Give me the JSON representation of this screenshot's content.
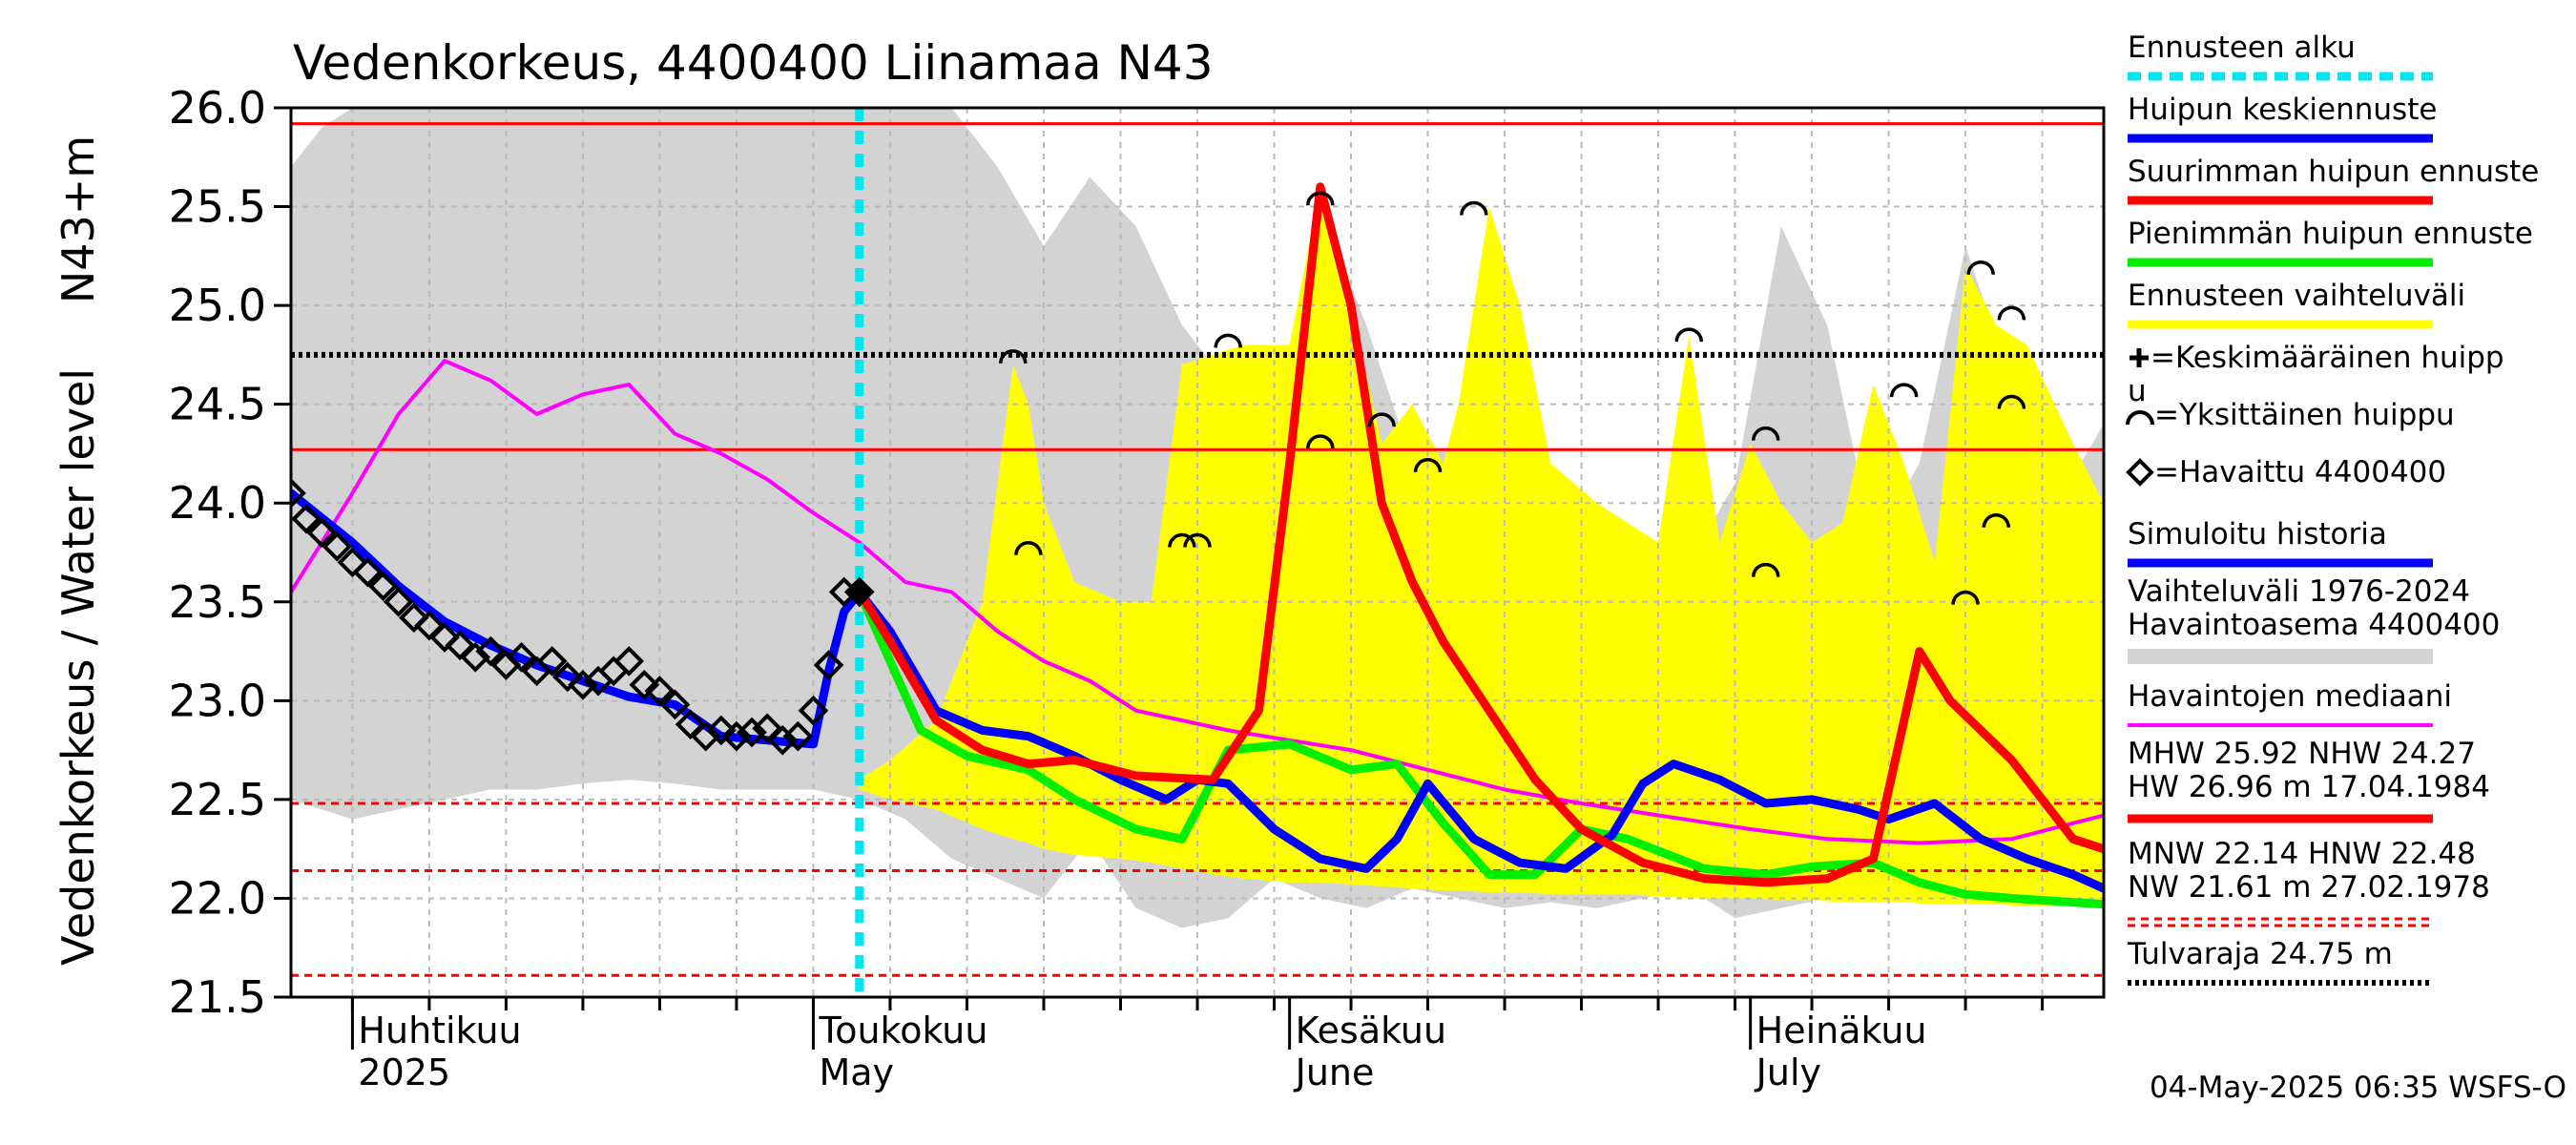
{
  "chart_data": {
    "type": "line",
    "title": "Vedenkorkeus, 4400400 Liinamaa N43",
    "ylabel_line1": "Vedenkorkeus / Water level",
    "ylabel_line2": "N43+m",
    "ylim": [
      21.5,
      26.0
    ],
    "yticks": [
      "21.5",
      "22.0",
      "22.5",
      "23.0",
      "23.5",
      "24.0",
      "24.5",
      "25.0",
      "25.5",
      "26.0"
    ],
    "xlim": [
      "2025-03-28",
      "2025-07-24"
    ],
    "months": [
      {
        "fi": "Huhtikuu",
        "en": "2025",
        "date": "2025-04-01"
      },
      {
        "fi": "Toukokuu",
        "en": "May",
        "date": "2025-05-01"
      },
      {
        "fi": "Kesäkuu",
        "en": "June",
        "date": "2025-06-01"
      },
      {
        "fi": "Heinäkuu",
        "en": "July",
        "date": "2025-07-01"
      }
    ],
    "forecast_start": "2025-05-04",
    "reference_lines": {
      "red_solid": [
        25.92,
        24.27
      ],
      "red_dashed": [
        22.48,
        22.14,
        21.61
      ],
      "flood_limit": 24.75
    },
    "colors": {
      "history_band": "#d3d3d3",
      "forecast_band": "#ffff00",
      "median": "#ff00ff",
      "mean_peak": "#0000ff",
      "max_peak": "#ff0000",
      "min_peak": "#00ee00",
      "forecast_start": "#00e5ee",
      "simulated": "#0000ff",
      "threshold": "#ff0000"
    },
    "series": [
      {
        "name": "Havaintojen mediaani",
        "x": [
          "2025-03-28",
          "2025-04-01",
          "2025-04-04",
          "2025-04-07",
          "2025-04-10",
          "2025-04-13",
          "2025-04-16",
          "2025-04-19",
          "2025-04-22",
          "2025-04-25",
          "2025-04-28",
          "2025-05-01",
          "2025-05-04",
          "2025-05-07",
          "2025-05-10",
          "2025-05-13",
          "2025-05-16",
          "2025-05-19",
          "2025-05-22",
          "2025-05-25",
          "2025-05-28",
          "2025-06-01",
          "2025-06-05",
          "2025-06-10",
          "2025-06-15",
          "2025-06-20",
          "2025-06-25",
          "2025-07-01",
          "2025-07-06",
          "2025-07-12",
          "2025-07-18",
          "2025-07-24"
        ],
        "values": [
          23.55,
          24.05,
          24.45,
          24.72,
          24.62,
          24.45,
          24.55,
          24.6,
          24.35,
          24.25,
          24.12,
          23.95,
          23.8,
          23.6,
          23.55,
          23.35,
          23.2,
          23.1,
          22.95,
          22.9,
          22.85,
          22.8,
          22.75,
          22.65,
          22.55,
          22.48,
          22.42,
          22.35,
          22.3,
          22.28,
          22.3,
          22.42
        ]
      },
      {
        "name": "Simuloitu historia",
        "x": [
          "2025-03-28",
          "2025-04-01",
          "2025-04-04",
          "2025-04-07",
          "2025-04-10",
          "2025-04-13",
          "2025-04-16",
          "2025-04-19",
          "2025-04-22",
          "2025-04-25",
          "2025-04-28",
          "2025-05-01",
          "2025-05-02",
          "2025-05-03",
          "2025-05-04"
        ],
        "values": [
          24.05,
          23.8,
          23.58,
          23.4,
          23.28,
          23.18,
          23.1,
          23.02,
          22.98,
          22.82,
          22.8,
          22.78,
          23.15,
          23.45,
          23.55
        ]
      },
      {
        "name": "Havaittu 4400400",
        "x": [
          "2025-03-28",
          "2025-03-29",
          "2025-03-30",
          "2025-03-31",
          "2025-04-01",
          "2025-04-02",
          "2025-04-03",
          "2025-04-04",
          "2025-04-05",
          "2025-04-06",
          "2025-04-07",
          "2025-04-08",
          "2025-04-09",
          "2025-04-10",
          "2025-04-11",
          "2025-04-12",
          "2025-04-13",
          "2025-04-14",
          "2025-04-15",
          "2025-04-16",
          "2025-04-17",
          "2025-04-18",
          "2025-04-19",
          "2025-04-20",
          "2025-04-21",
          "2025-04-22",
          "2025-04-23",
          "2025-04-24",
          "2025-04-25",
          "2025-04-26",
          "2025-04-27",
          "2025-04-28",
          "2025-04-29",
          "2025-04-30",
          "2025-05-01",
          "2025-05-02",
          "2025-05-03",
          "2025-05-04"
        ],
        "values": [
          24.05,
          23.92,
          23.85,
          23.78,
          23.7,
          23.65,
          23.58,
          23.5,
          23.42,
          23.38,
          23.32,
          23.28,
          23.22,
          23.25,
          23.18,
          23.22,
          23.15,
          23.2,
          23.12,
          23.08,
          23.1,
          23.15,
          23.2,
          23.08,
          23.05,
          22.98,
          22.88,
          22.82,
          22.85,
          22.82,
          22.84,
          22.86,
          22.8,
          22.82,
          22.95,
          23.18,
          23.55,
          23.55
        ]
      },
      {
        "name": "Huipun keskiennuste",
        "x": [
          "2025-05-04",
          "2025-05-06",
          "2025-05-09",
          "2025-05-12",
          "2025-05-15",
          "2025-05-18",
          "2025-05-21",
          "2025-05-24",
          "2025-05-26",
          "2025-05-28",
          "2025-05-31",
          "2025-06-03",
          "2025-06-06",
          "2025-06-08",
          "2025-06-10",
          "2025-06-13",
          "2025-06-16",
          "2025-06-19",
          "2025-06-22",
          "2025-06-24",
          "2025-06-26",
          "2025-06-29",
          "2025-07-02",
          "2025-07-05",
          "2025-07-08",
          "2025-07-10",
          "2025-07-13",
          "2025-07-16",
          "2025-07-19",
          "2025-07-22",
          "2025-07-24"
        ],
        "values": [
          23.55,
          23.35,
          22.95,
          22.85,
          22.82,
          22.72,
          22.6,
          22.5,
          22.6,
          22.58,
          22.35,
          22.2,
          22.15,
          22.3,
          22.58,
          22.3,
          22.18,
          22.15,
          22.32,
          22.58,
          22.68,
          22.6,
          22.48,
          22.5,
          22.45,
          22.4,
          22.48,
          22.3,
          22.2,
          22.12,
          22.05
        ]
      },
      {
        "name": "Suurimman huipun ennuste",
        "x": [
          "2025-05-04",
          "2025-05-06",
          "2025-05-09",
          "2025-05-12",
          "2025-05-15",
          "2025-05-18",
          "2025-05-22",
          "2025-05-27",
          "2025-05-30",
          "2025-06-01",
          "2025-06-03",
          "2025-06-05",
          "2025-06-07",
          "2025-06-09",
          "2025-06-11",
          "2025-06-14",
          "2025-06-17",
          "2025-06-20",
          "2025-06-24",
          "2025-06-28",
          "2025-07-02",
          "2025-07-06",
          "2025-07-09",
          "2025-07-12",
          "2025-07-14",
          "2025-07-16",
          "2025-07-18",
          "2025-07-20",
          "2025-07-22",
          "2025-07-24"
        ],
        "values": [
          23.55,
          23.3,
          22.9,
          22.75,
          22.68,
          22.7,
          22.62,
          22.6,
          22.95,
          24.2,
          25.6,
          25.0,
          24.0,
          23.6,
          23.3,
          22.95,
          22.6,
          22.35,
          22.18,
          22.1,
          22.08,
          22.1,
          22.2,
          23.25,
          23.0,
          22.85,
          22.7,
          22.5,
          22.3,
          22.25
        ]
      },
      {
        "name": "Pienimmän huipun ennuste",
        "x": [
          "2025-05-04",
          "2025-05-06",
          "2025-05-08",
          "2025-05-11",
          "2025-05-15",
          "2025-05-18",
          "2025-05-22",
          "2025-05-25",
          "2025-05-28",
          "2025-06-01",
          "2025-06-05",
          "2025-06-08",
          "2025-06-11",
          "2025-06-14",
          "2025-06-17",
          "2025-06-20",
          "2025-06-23",
          "2025-06-28",
          "2025-07-02",
          "2025-07-05",
          "2025-07-09",
          "2025-07-12",
          "2025-07-15",
          "2025-07-18",
          "2025-07-22",
          "2025-07-24"
        ],
        "values": [
          23.55,
          23.2,
          22.85,
          22.72,
          22.65,
          22.5,
          22.35,
          22.3,
          22.75,
          22.78,
          22.65,
          22.68,
          22.38,
          22.12,
          22.12,
          22.35,
          22.3,
          22.15,
          22.12,
          22.16,
          22.18,
          22.08,
          22.02,
          22.0,
          21.98,
          21.97
        ]
      }
    ],
    "bands": [
      {
        "name": "Ennusteen vaihteluväli",
        "x": [
          "2025-05-04",
          "2025-05-06",
          "2025-05-09",
          "2025-05-12",
          "2025-05-14",
          "2025-05-15",
          "2025-05-16",
          "2025-05-18",
          "2025-05-21",
          "2025-05-23",
          "2025-05-25",
          "2025-05-27",
          "2025-05-29",
          "2025-06-01",
          "2025-06-03",
          "2025-06-05",
          "2025-06-07",
          "2025-06-09",
          "2025-06-11",
          "2025-06-12",
          "2025-06-14",
          "2025-06-16",
          "2025-06-18",
          "2025-06-21",
          "2025-06-23",
          "2025-06-25",
          "2025-06-27",
          "2025-06-29",
          "2025-07-01",
          "2025-07-03",
          "2025-07-05",
          "2025-07-07",
          "2025-07-09",
          "2025-07-11",
          "2025-07-13",
          "2025-07-15",
          "2025-07-17",
          "2025-07-19",
          "2025-07-22",
          "2025-07-24"
        ],
        "upper": [
          22.6,
          22.7,
          22.9,
          23.5,
          24.7,
          24.5,
          24.0,
          23.6,
          23.5,
          23.5,
          24.7,
          24.75,
          24.8,
          24.8,
          25.6,
          25.0,
          24.3,
          24.5,
          24.2,
          24.5,
          25.5,
          25.0,
          24.2,
          24.0,
          23.9,
          23.8,
          24.85,
          23.8,
          24.3,
          24.0,
          23.8,
          23.9,
          24.6,
          24.2,
          23.7,
          25.2,
          24.9,
          24.8,
          24.3,
          24.0
        ],
        "lower": [
          22.55,
          22.5,
          22.45,
          22.35,
          22.3,
          22.28,
          22.25,
          22.22,
          22.2,
          22.18,
          22.15,
          22.12,
          22.1,
          22.08,
          22.08,
          22.07,
          22.06,
          22.05,
          22.04,
          22.04,
          22.03,
          22.03,
          22.02,
          22.02,
          22.02,
          22.01,
          22.0,
          22.0,
          22.0,
          21.99,
          21.99,
          21.98,
          21.98,
          21.98,
          21.97,
          21.97,
          21.97,
          21.96,
          21.96,
          21.96
        ]
      },
      {
        "name": "Vaihteluväli 1976-2024 Havaintoasema 4400400",
        "x": [
          "2025-03-28",
          "2025-03-30",
          "2025-04-01",
          "2025-04-04",
          "2025-04-07",
          "2025-04-10",
          "2025-04-13",
          "2025-04-16",
          "2025-04-19",
          "2025-04-22",
          "2025-04-25",
          "2025-04-28",
          "2025-05-01",
          "2025-05-04",
          "2025-05-07",
          "2025-05-10",
          "2025-05-13",
          "2025-05-16",
          "2025-05-19",
          "2025-05-22",
          "2025-05-25",
          "2025-05-28",
          "2025-05-31",
          "2025-06-03",
          "2025-06-06",
          "2025-06-09",
          "2025-06-12",
          "2025-06-15",
          "2025-06-18",
          "2025-06-21",
          "2025-06-24",
          "2025-06-27",
          "2025-06-30",
          "2025-07-03",
          "2025-07-06",
          "2025-07-09",
          "2025-07-12",
          "2025-07-15",
          "2025-07-18",
          "2025-07-21",
          "2025-07-24"
        ],
        "upper": [
          25.7,
          25.9,
          26.0,
          26.0,
          26.0,
          26.0,
          26.0,
          26.0,
          26.0,
          26.0,
          26.0,
          26.0,
          26.0,
          26.0,
          26.0,
          26.0,
          25.7,
          25.3,
          25.65,
          25.4,
          24.9,
          24.6,
          24.2,
          25.5,
          24.9,
          24.2,
          24.3,
          24.4,
          24.0,
          23.9,
          23.8,
          23.7,
          24.1,
          25.4,
          24.9,
          23.8,
          24.2,
          25.3,
          24.6,
          24.0,
          24.4
        ],
        "lower": [
          22.5,
          22.45,
          22.4,
          22.45,
          22.5,
          22.55,
          22.55,
          22.58,
          22.6,
          22.58,
          22.55,
          22.55,
          22.55,
          22.5,
          22.4,
          22.2,
          22.1,
          22.0,
          22.3,
          21.95,
          21.85,
          21.9,
          22.1,
          22.0,
          21.95,
          22.05,
          22.0,
          21.95,
          21.98,
          21.95,
          22.0,
          22.05,
          21.9,
          21.95,
          22.0,
          22.0,
          22.05,
          22.0,
          22.05,
          22.05,
          22.1
        ]
      }
    ],
    "peak_markers": [
      {
        "x": "2025-05-14",
        "y": 24.75
      },
      {
        "x": "2025-05-15",
        "y": 23.78
      },
      {
        "x": "2025-05-25",
        "y": 23.82
      },
      {
        "x": "2025-05-26",
        "y": 23.82
      },
      {
        "x": "2025-05-28",
        "y": 24.83
      },
      {
        "x": "2025-06-03",
        "y": 25.55
      },
      {
        "x": "2025-06-03",
        "y": 24.32
      },
      {
        "x": "2025-06-07",
        "y": 24.43
      },
      {
        "x": "2025-06-10",
        "y": 24.2
      },
      {
        "x": "2025-06-13",
        "y": 25.5
      },
      {
        "x": "2025-06-27",
        "y": 24.86
      },
      {
        "x": "2025-07-02",
        "y": 24.36
      },
      {
        "x": "2025-07-02",
        "y": 23.67
      },
      {
        "x": "2025-07-11",
        "y": 24.58
      },
      {
        "x": "2025-07-15",
        "y": 23.53
      },
      {
        "x": "2025-07-16",
        "y": 25.2
      },
      {
        "x": "2025-07-17",
        "y": 23.92
      },
      {
        "x": "2025-07-18",
        "y": 24.97
      },
      {
        "x": "2025-07-18",
        "y": 24.52
      }
    ],
    "legend_placement": "right"
  },
  "legend": {
    "items": [
      {
        "label": "Ennusteen alku",
        "kind": "dashed",
        "color": "#00e5ee"
      },
      {
        "label": "Huipun keskiennuste",
        "kind": "line",
        "color": "#0000ff"
      },
      {
        "label": "Suurimman huipun ennuste",
        "kind": "line",
        "color": "#ff0000"
      },
      {
        "label": "Pienimmän huipun ennuste",
        "kind": "line",
        "color": "#00ee00"
      },
      {
        "label": "Ennusteen vaihteluväli",
        "kind": "line",
        "color": "#ffff00"
      },
      {
        "label": "=Keskimääräinen huipp",
        "label2": "u",
        "kind": "cross"
      },
      {
        "label": "=Yksittäinen huippu",
        "kind": "arc"
      },
      {
        "label": "=Havaittu 4400400",
        "kind": "diamond"
      },
      {
        "label": "Simuloitu historia",
        "kind": "line",
        "color": "#0000ff"
      },
      {
        "label": "Vaihteluväli 1976-2024",
        "label2": " Havaintoasema 4400400",
        "kind": "line",
        "color": "#d3d3d3"
      },
      {
        "label": "Havaintojen mediaani",
        "kind": "line",
        "color": "#ff00ff"
      },
      {
        "label": "MHW  25.92 NHW  24.27",
        "label2": "HW  26.96 m 17.04.1984",
        "kind": "line",
        "color": "#ff0000"
      },
      {
        "label": "MNW  22.14 HNW  22.48",
        "label2": "NW  21.61 m 27.02.1978",
        "kind": "dashed",
        "color": "#ff0000"
      },
      {
        "label": "Tulvaraja 24.75 m",
        "kind": "dotted",
        "color": "#000000"
      }
    ]
  },
  "footer": "04-May-2025 06:35 WSFS-O"
}
